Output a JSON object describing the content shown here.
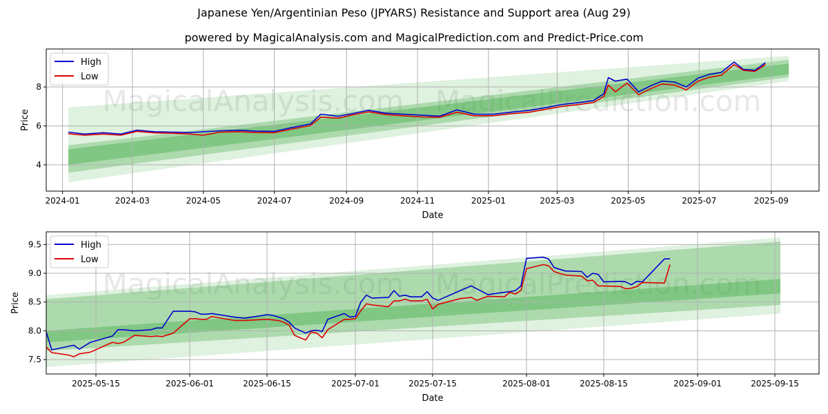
{
  "title": "Japanese Yen/Argentinian Peso (JPYARS) Resistance and Support area (Aug 29)",
  "subtitle": "powered by MagicalAnalysis.com and MagicalPrediction.com and Predict-Price.com",
  "watermarks": [
    "MagicalAnalysis.com",
    "MagicalPrediction.com"
  ],
  "colors": {
    "high": "#0000cc",
    "low": "#dd0000",
    "band": "#4caf50",
    "grid": "#b0b0b0"
  },
  "chart_data": [
    {
      "type": "line",
      "xlabel": "Date",
      "ylabel": "Price",
      "grid": true,
      "legend_position": "top-left",
      "xlim": [
        "2023-12-18",
        "2025-10-12"
      ],
      "ylim": [
        2.65,
        9.95
      ],
      "x_ticks": [
        "2024-01",
        "2024-03",
        "2024-05",
        "2024-07",
        "2024-09",
        "2024-11",
        "2025-01",
        "2025-03",
        "2025-05",
        "2025-07",
        "2025-09"
      ],
      "x_tick_dates": [
        "2024-01-01",
        "2024-03-01",
        "2024-05-01",
        "2024-07-01",
        "2024-09-01",
        "2024-11-01",
        "2025-01-01",
        "2025-03-01",
        "2025-05-01",
        "2025-07-01",
        "2025-09-01"
      ],
      "y_ticks": [
        4,
        6,
        8
      ],
      "bands": [
        {
          "start": "2024-01-06",
          "end": "2025-09-16",
          "upper": [
            6.95,
            9.6
          ],
          "lower": [
            3.1,
            8.3
          ]
        },
        {
          "start": "2024-01-06",
          "end": "2025-09-16",
          "upper": [
            5.0,
            9.4
          ],
          "lower": [
            3.6,
            8.5
          ]
        },
        {
          "start": "2024-01-06",
          "end": "2025-09-16",
          "upper": [
            4.8,
            9.2
          ],
          "lower": [
            4.0,
            8.65
          ]
        }
      ],
      "series": [
        {
          "name": "High",
          "x": [
            "2024-01-06",
            "2024-01-20",
            "2024-02-05",
            "2024-02-20",
            "2024-03-05",
            "2024-03-20",
            "2024-04-05",
            "2024-04-20",
            "2024-05-01",
            "2024-05-15",
            "2024-06-01",
            "2024-06-15",
            "2024-07-01",
            "2024-07-15",
            "2024-08-01",
            "2024-08-10",
            "2024-08-25",
            "2024-09-05",
            "2024-09-20",
            "2024-10-05",
            "2024-10-20",
            "2024-11-05",
            "2024-11-20",
            "2024-12-05",
            "2024-12-20",
            "2025-01-05",
            "2025-01-20",
            "2025-02-05",
            "2025-02-20",
            "2025-03-05",
            "2025-03-20",
            "2025-04-01",
            "2025-04-10",
            "2025-04-14",
            "2025-04-20",
            "2025-04-30",
            "2025-05-10",
            "2025-05-20",
            "2025-05-30",
            "2025-06-10",
            "2025-06-20",
            "2025-06-30",
            "2025-07-10",
            "2025-07-20",
            "2025-07-31",
            "2025-08-08",
            "2025-08-18",
            "2025-08-27"
          ],
          "values": [
            5.68,
            5.58,
            5.65,
            5.58,
            5.78,
            5.7,
            5.68,
            5.66,
            5.7,
            5.75,
            5.78,
            5.73,
            5.72,
            5.9,
            6.1,
            6.6,
            6.5,
            6.62,
            6.8,
            6.65,
            6.6,
            6.55,
            6.5,
            6.82,
            6.6,
            6.6,
            6.7,
            6.8,
            6.95,
            7.1,
            7.2,
            7.3,
            7.65,
            8.48,
            8.3,
            8.4,
            7.75,
            8.05,
            8.3,
            8.25,
            8.0,
            8.45,
            8.65,
            8.75,
            9.28,
            8.9,
            8.85,
            9.25
          ]
        },
        {
          "name": "Low",
          "x": [
            "2024-01-06",
            "2024-01-20",
            "2024-02-05",
            "2024-02-20",
            "2024-03-05",
            "2024-03-20",
            "2024-04-05",
            "2024-04-20",
            "2024-05-01",
            "2024-05-15",
            "2024-06-01",
            "2024-06-15",
            "2024-07-01",
            "2024-07-15",
            "2024-08-01",
            "2024-08-10",
            "2024-08-25",
            "2024-09-05",
            "2024-09-20",
            "2024-10-05",
            "2024-10-20",
            "2024-11-05",
            "2024-11-20",
            "2024-12-05",
            "2024-12-20",
            "2025-01-05",
            "2025-01-20",
            "2025-02-05",
            "2025-02-20",
            "2025-03-05",
            "2025-03-20",
            "2025-04-01",
            "2025-04-10",
            "2025-04-14",
            "2025-04-20",
            "2025-04-30",
            "2025-05-10",
            "2025-05-20",
            "2025-05-30",
            "2025-06-10",
            "2025-06-20",
            "2025-06-30",
            "2025-07-10",
            "2025-07-20",
            "2025-07-31",
            "2025-08-08",
            "2025-08-18",
            "2025-08-27"
          ],
          "values": [
            5.6,
            5.52,
            5.58,
            5.52,
            5.72,
            5.64,
            5.62,
            5.58,
            5.52,
            5.68,
            5.7,
            5.66,
            5.65,
            5.82,
            6.02,
            6.45,
            6.4,
            6.55,
            6.72,
            6.58,
            6.52,
            6.46,
            6.44,
            6.7,
            6.52,
            6.52,
            6.62,
            6.7,
            6.86,
            7.0,
            7.1,
            7.2,
            7.5,
            8.1,
            7.75,
            8.2,
            7.6,
            7.9,
            8.15,
            8.1,
            7.85,
            8.3,
            8.5,
            8.6,
            9.15,
            8.85,
            8.8,
            9.15
          ]
        }
      ]
    },
    {
      "type": "line",
      "xlabel": "Date",
      "ylabel": "Price",
      "grid": true,
      "legend_position": "top-left",
      "xlim": [
        "2025-05-06",
        "2025-09-23"
      ],
      "ylim": [
        7.25,
        9.72
      ],
      "x_ticks": [
        "2025-05-15",
        "2025-06-01",
        "2025-06-15",
        "2025-07-01",
        "2025-07-15",
        "2025-08-01",
        "2025-08-15",
        "2025-09-01",
        "2025-09-15"
      ],
      "y_ticks": [
        7.5,
        8.0,
        8.5,
        9.0,
        9.5
      ],
      "bands": [
        {
          "start": "2025-05-06",
          "end": "2025-09-16",
          "upper": [
            8.62,
            9.62
          ],
          "lower": [
            7.37,
            8.3
          ]
        },
        {
          "start": "2025-05-06",
          "end": "2025-09-16",
          "upper": [
            8.55,
            9.55
          ],
          "lower": [
            7.65,
            8.45
          ]
        },
        {
          "start": "2025-05-06",
          "end": "2025-09-16",
          "upper": [
            8.0,
            8.9
          ],
          "lower": [
            7.8,
            8.65
          ]
        }
      ],
      "series": [
        {
          "name": "High",
          "x": [
            "2025-05-06",
            "2025-05-07",
            "2025-05-10",
            "2025-05-11",
            "2025-05-12",
            "2025-05-14",
            "2025-05-18",
            "2025-05-19",
            "2025-05-20",
            "2025-05-22",
            "2025-05-25",
            "2025-05-26",
            "2025-05-27",
            "2025-05-29",
            "2025-06-01",
            "2025-06-02",
            "2025-06-03",
            "2025-06-04",
            "2025-06-05",
            "2025-06-09",
            "2025-06-11",
            "2025-06-15",
            "2025-06-16",
            "2025-06-17",
            "2025-06-18",
            "2025-06-19",
            "2025-06-20",
            "2025-06-22",
            "2025-06-23",
            "2025-06-24",
            "2025-06-25",
            "2025-06-26",
            "2025-06-29",
            "2025-06-30",
            "2025-07-01",
            "2025-07-02",
            "2025-07-03",
            "2025-07-04",
            "2025-07-07",
            "2025-07-08",
            "2025-07-09",
            "2025-07-10",
            "2025-07-11",
            "2025-07-13",
            "2025-07-14",
            "2025-07-15",
            "2025-07-16",
            "2025-07-20",
            "2025-07-22",
            "2025-07-23",
            "2025-07-25",
            "2025-07-28",
            "2025-07-29",
            "2025-07-30",
            "2025-07-31",
            "2025-08-01",
            "2025-08-04",
            "2025-08-05",
            "2025-08-06",
            "2025-08-08",
            "2025-08-11",
            "2025-08-12",
            "2025-08-13",
            "2025-08-14",
            "2025-08-15",
            "2025-08-18",
            "2025-08-19",
            "2025-08-20",
            "2025-08-21",
            "2025-08-22",
            "2025-08-26",
            "2025-08-27"
          ],
          "values": [
            7.98,
            7.67,
            7.73,
            7.75,
            7.68,
            7.8,
            7.91,
            8.02,
            8.02,
            8.0,
            8.02,
            8.05,
            8.05,
            8.34,
            8.34,
            8.33,
            8.29,
            8.29,
            8.3,
            8.24,
            8.22,
            8.28,
            8.27,
            8.24,
            8.21,
            8.15,
            8.05,
            7.96,
            8.0,
            8.01,
            7.99,
            8.2,
            8.3,
            8.24,
            8.25,
            8.5,
            8.62,
            8.57,
            8.58,
            8.7,
            8.6,
            8.62,
            8.59,
            8.59,
            8.68,
            8.57,
            8.53,
            8.7,
            8.78,
            8.73,
            8.63,
            8.67,
            8.68,
            8.7,
            8.78,
            9.26,
            9.28,
            9.25,
            9.1,
            9.04,
            9.03,
            8.93,
            9.0,
            8.98,
            8.85,
            8.86,
            8.85,
            8.8,
            8.86,
            8.85,
            9.25,
            9.25
          ]
        },
        {
          "name": "Low",
          "x": [
            "2025-05-06",
            "2025-05-07",
            "2025-05-10",
            "2025-05-11",
            "2025-05-12",
            "2025-05-14",
            "2025-05-18",
            "2025-05-19",
            "2025-05-20",
            "2025-05-22",
            "2025-05-25",
            "2025-05-26",
            "2025-05-27",
            "2025-05-29",
            "2025-06-01",
            "2025-06-02",
            "2025-06-03",
            "2025-06-04",
            "2025-06-05",
            "2025-06-09",
            "2025-06-11",
            "2025-06-15",
            "2025-06-16",
            "2025-06-17",
            "2025-06-18",
            "2025-06-19",
            "2025-06-20",
            "2025-06-22",
            "2025-06-23",
            "2025-06-24",
            "2025-06-25",
            "2025-06-26",
            "2025-06-29",
            "2025-06-30",
            "2025-07-01",
            "2025-07-02",
            "2025-07-03",
            "2025-07-04",
            "2025-07-07",
            "2025-07-08",
            "2025-07-09",
            "2025-07-10",
            "2025-07-11",
            "2025-07-13",
            "2025-07-14",
            "2025-07-15",
            "2025-07-16",
            "2025-07-20",
            "2025-07-22",
            "2025-07-23",
            "2025-07-25",
            "2025-07-28",
            "2025-07-29",
            "2025-07-30",
            "2025-07-31",
            "2025-08-01",
            "2025-08-04",
            "2025-08-05",
            "2025-08-06",
            "2025-08-08",
            "2025-08-11",
            "2025-08-12",
            "2025-08-13",
            "2025-08-14",
            "2025-08-15",
            "2025-08-18",
            "2025-08-19",
            "2025-08-20",
            "2025-08-21",
            "2025-08-22",
            "2025-08-26",
            "2025-08-27"
          ],
          "values": [
            7.72,
            7.62,
            7.58,
            7.55,
            7.6,
            7.63,
            7.8,
            7.78,
            7.8,
            7.92,
            7.9,
            7.91,
            7.9,
            7.96,
            8.21,
            8.21,
            8.2,
            8.2,
            8.25,
            8.18,
            8.18,
            8.2,
            8.19,
            8.18,
            8.15,
            8.1,
            7.92,
            7.84,
            7.98,
            7.96,
            7.88,
            8.02,
            8.2,
            8.2,
            8.21,
            8.35,
            8.47,
            8.45,
            8.42,
            8.52,
            8.52,
            8.55,
            8.52,
            8.52,
            8.55,
            8.38,
            8.46,
            8.56,
            8.58,
            8.53,
            8.6,
            8.59,
            8.67,
            8.64,
            8.7,
            9.08,
            9.15,
            9.13,
            9.03,
            8.97,
            8.95,
            8.87,
            8.88,
            8.78,
            8.78,
            8.77,
            8.73,
            8.74,
            8.77,
            8.84,
            8.83,
            9.15
          ]
        }
      ]
    }
  ]
}
